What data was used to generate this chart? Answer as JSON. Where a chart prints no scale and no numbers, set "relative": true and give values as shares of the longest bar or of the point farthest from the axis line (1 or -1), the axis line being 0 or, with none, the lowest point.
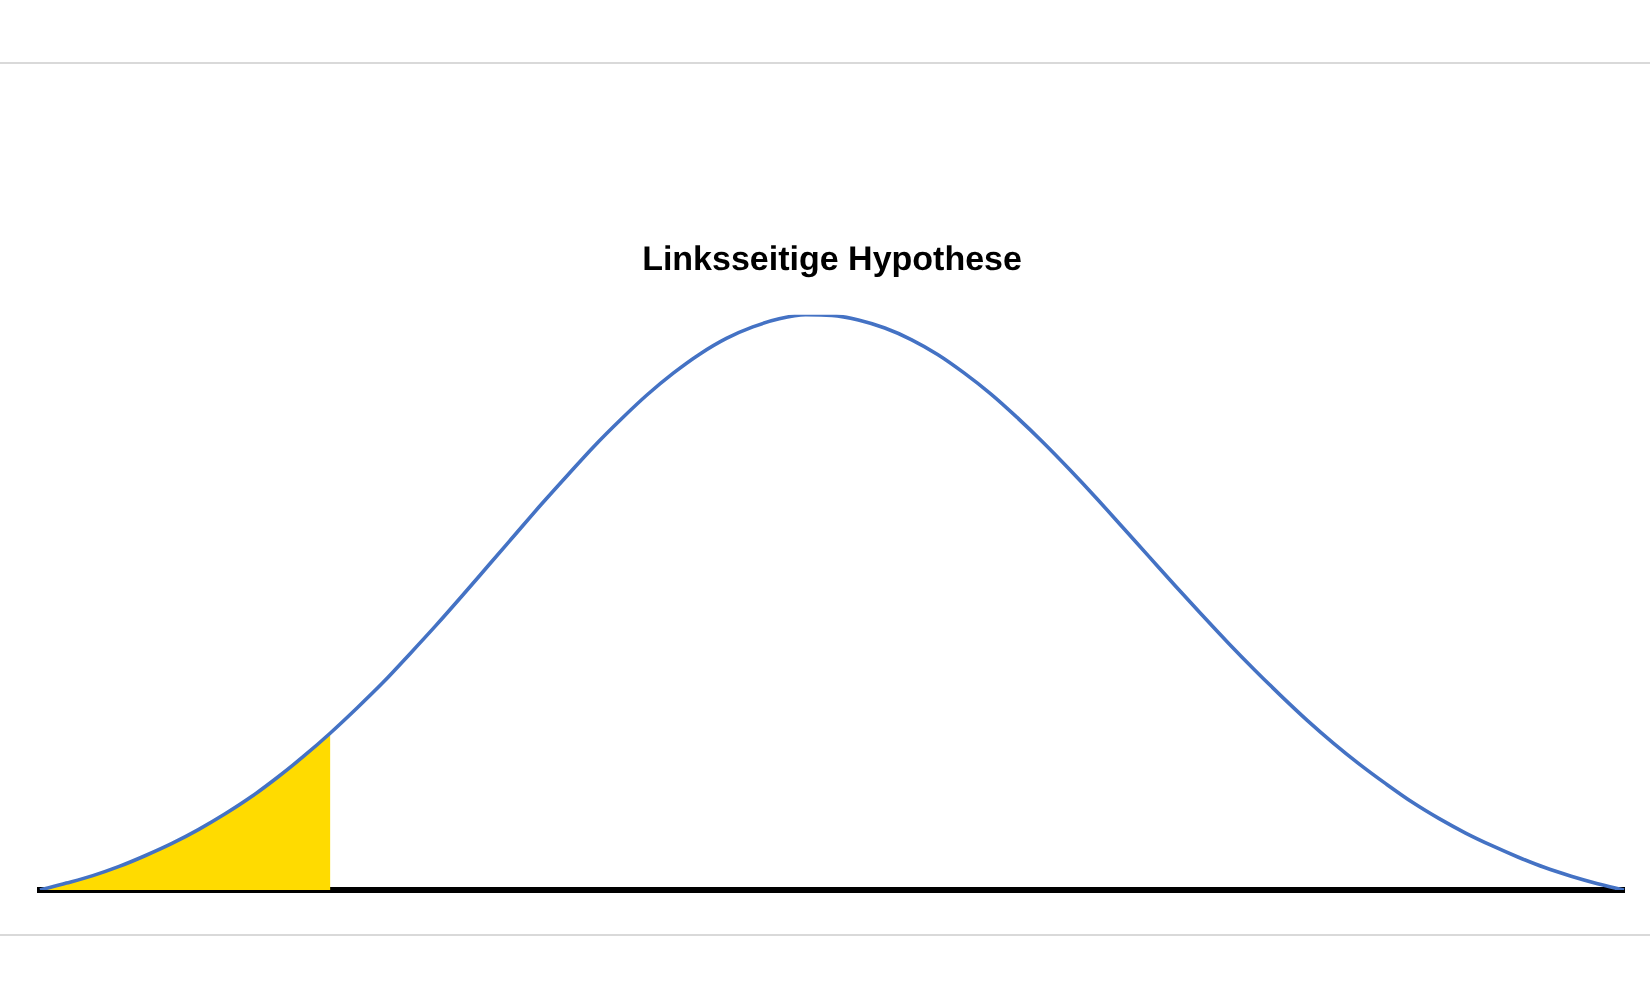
{
  "chart_data": {
    "type": "line",
    "title": "Linksseitige Hypothese",
    "relative": true,
    "marker": "none",
    "categories": [
      null,
      null,
      null,
      null,
      null,
      null,
      null,
      null,
      null,
      null,
      null,
      null,
      null,
      null,
      null,
      null,
      null,
      null,
      null,
      null,
      null,
      null,
      null,
      null,
      null,
      null,
      null,
      null,
      null,
      null,
      null,
      null,
      null,
      null,
      null,
      null,
      null,
      null,
      null,
      null,
      null,
      null,
      null,
      null,
      null,
      null,
      null,
      null,
      null,
      null,
      null,
      null,
      null,
      null,
      null,
      null,
      null,
      null,
      null,
      null,
      null
    ],
    "series": [
      {
        "type": "area",
        "color": "#ffdb00",
        "values": [
          0,
          0.012,
          0.025,
          0.041,
          0.06,
          0.081,
          0.105,
          0.132,
          0.162,
          0.196,
          0.233,
          0.273,
          null,
          null,
          null,
          null,
          null,
          null,
          null,
          null,
          null,
          null,
          null,
          null,
          null,
          null,
          null,
          null,
          null,
          null,
          null,
          null,
          null,
          null,
          null,
          null,
          null,
          null,
          null,
          null,
          null,
          null,
          null,
          null,
          null,
          null,
          null,
          null,
          null,
          null,
          null,
          null,
          null,
          null,
          null,
          null,
          null,
          null,
          null,
          null,
          null
        ]
      },
      {
        "color": "#4472c4",
        "values": [
          0,
          0.012,
          0.025,
          0.041,
          0.06,
          0.081,
          0.105,
          0.132,
          0.162,
          0.196,
          0.233,
          0.273,
          0.316,
          0.361,
          0.41,
          0.46,
          0.512,
          0.565,
          0.618,
          0.671,
          0.722,
          0.772,
          0.818,
          0.861,
          0.899,
          0.932,
          0.959,
          0.979,
          0.993,
          1,
          0.999,
          0.991,
          0.977,
          0.957,
          0.931,
          0.899,
          0.863,
          0.822,
          0.778,
          0.731,
          0.682,
          0.631,
          0.58,
          0.529,
          0.479,
          0.43,
          0.383,
          0.338,
          0.295,
          0.255,
          0.218,
          0.184,
          0.152,
          0.124,
          0.099,
          0.077,
          0.057,
          0.039,
          0.024,
          0.011,
          0
        ]
      }
    ]
  }
}
